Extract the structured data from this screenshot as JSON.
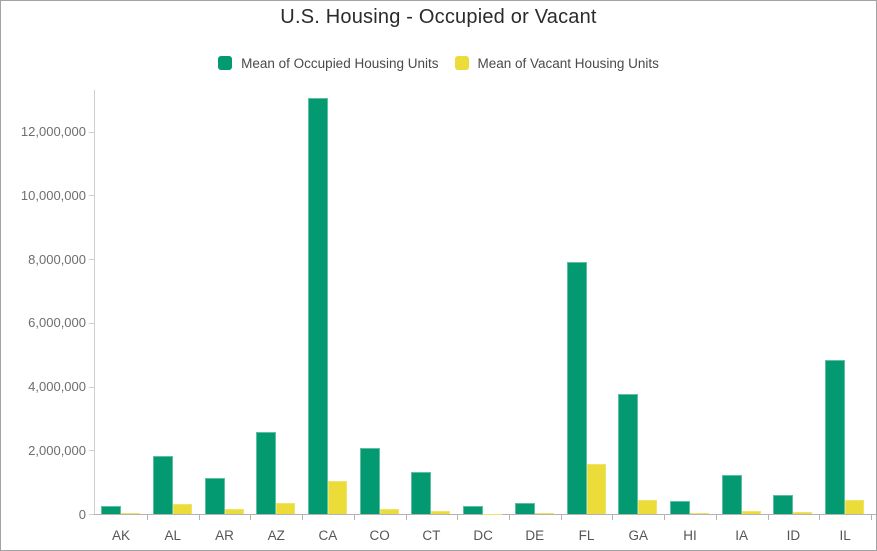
{
  "title": "U.S. Housing - Occupied or Vacant",
  "legend": {
    "items": [
      {
        "label": "Mean of Occupied Housing Units",
        "color": "#049a71"
      },
      {
        "label": "Mean of Vacant Housing Units",
        "color": "#ecdc3a"
      }
    ]
  },
  "chart_data": {
    "type": "bar",
    "title": "U.S. Housing - Occupied or Vacant",
    "categories": [
      "AK",
      "AL",
      "AR",
      "AZ",
      "CA",
      "CO",
      "CT",
      "DC",
      "DE",
      "FL",
      "GA",
      "HI",
      "IA",
      "ID",
      "IL"
    ],
    "series": [
      {
        "name": "Mean of Occupied Housing Units",
        "color": "#049a71",
        "values": [
          260000,
          1850000,
          1150000,
          2580000,
          13080000,
          2090000,
          1330000,
          255000,
          355000,
          7910000,
          3790000,
          430000,
          1240000,
          615000,
          4850000
        ]
      },
      {
        "name": "Mean of Vacant Housing Units",
        "color": "#ecdc3a",
        "values": [
          60000,
          335000,
          185000,
          365000,
          1060000,
          185000,
          100000,
          30000,
          55000,
          1590000,
          460000,
          55000,
          105000,
          65000,
          460000
        ]
      }
    ],
    "xlabel": "",
    "ylabel": "",
    "ylim": [
      0,
      13200000
    ],
    "ytick_interval": 2000000,
    "ytick_labels": [
      "0",
      "2,000,000",
      "4,000,000",
      "6,000,000",
      "8,000,000",
      "10,000,000",
      "12,000,000"
    ],
    "grid": false,
    "legend_position": "top"
  },
  "colors": {
    "occupied_fill": "#049a71",
    "occupied_border": "#5ec0a0",
    "vacant_fill": "#ecdc3a",
    "vacant_border": "#f0e468",
    "yaxis_line": "#cfcfcf",
    "baseline": "#b3b3b3",
    "ytick_label": "#6e6e6e",
    "xaxis_label": "#565656",
    "canvas_border": "#a3a3a3"
  }
}
